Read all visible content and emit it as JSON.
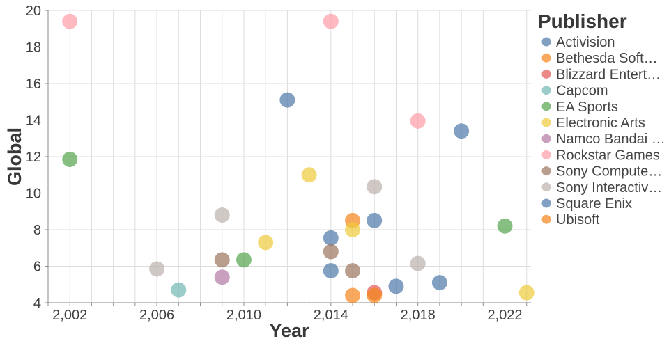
{
  "chart_data": {
    "type": "scatter",
    "title": "",
    "xlabel": "Year",
    "ylabel": "Global",
    "x_domain": [
      2001,
      2023.2
    ],
    "y_domain": [
      4,
      20
    ],
    "grid": true,
    "point_radius": 11,
    "point_opacity": 0.7,
    "x_labeled_ticks": [
      {
        "value": 2002,
        "label": "2,002"
      },
      {
        "value": 2006,
        "label": "2,006"
      },
      {
        "value": 2010,
        "label": "2,010"
      },
      {
        "value": 2014,
        "label": "2,014"
      },
      {
        "value": 2018,
        "label": "2,018"
      },
      {
        "value": 2022,
        "label": "2,022"
      }
    ],
    "y_ticks": [
      4,
      6,
      8,
      10,
      12,
      14,
      16,
      18,
      20
    ],
    "legend": {
      "title": "Publisher",
      "position": "right",
      "entries": [
        {
          "label": "Activision",
          "color": "#4c78a8"
        },
        {
          "label": "Bethesda Soft…",
          "color": "#f58518"
        },
        {
          "label": "Blizzard Entert…",
          "color": "#e45756"
        },
        {
          "label": "Capcom",
          "color": "#72b7b2"
        },
        {
          "label": "EA Sports",
          "color": "#54a24b"
        },
        {
          "label": "Electronic Arts",
          "color": "#eeca3b"
        },
        {
          "label": "Namco Bandai …",
          "color": "#b279a2"
        },
        {
          "label": "Rockstar Games",
          "color": "#ff9da6"
        },
        {
          "label": "Sony Compute…",
          "color": "#9d755d"
        },
        {
          "label": "Sony Interactiv…",
          "color": "#bab0ac"
        },
        {
          "label": "Square Enix",
          "color": "#4c78a8"
        },
        {
          "label": "Ubisoft",
          "color": "#f58518"
        }
      ]
    },
    "points": [
      {
        "year": 2002,
        "global": 19.4,
        "publisher": "Rockstar Games"
      },
      {
        "year": 2002,
        "global": 11.85,
        "publisher": "EA Sports"
      },
      {
        "year": 2006,
        "global": 5.85,
        "publisher": "Sony Interactiv…"
      },
      {
        "year": 2007,
        "global": 4.7,
        "publisher": "Capcom"
      },
      {
        "year": 2009,
        "global": 8.8,
        "publisher": "Sony Interactiv…"
      },
      {
        "year": 2009,
        "global": 6.35,
        "publisher": "Sony Compute…"
      },
      {
        "year": 2009,
        "global": 5.4,
        "publisher": "Namco Bandai …"
      },
      {
        "year": 2010,
        "global": 6.35,
        "publisher": "EA Sports"
      },
      {
        "year": 2011,
        "global": 7.3,
        "publisher": "Electronic Arts"
      },
      {
        "year": 2012,
        "global": 15.1,
        "publisher": "Activision"
      },
      {
        "year": 2013,
        "global": 11.0,
        "publisher": "Electronic Arts"
      },
      {
        "year": 2014,
        "global": 19.4,
        "publisher": "Rockstar Games"
      },
      {
        "year": 2014,
        "global": 7.55,
        "publisher": "Activision"
      },
      {
        "year": 2014,
        "global": 6.8,
        "publisher": "Sony Compute…"
      },
      {
        "year": 2014,
        "global": 5.75,
        "publisher": "Activision"
      },
      {
        "year": 2015,
        "global": 8.5,
        "publisher": "Bethesda Soft…"
      },
      {
        "year": 2015,
        "global": 8.0,
        "publisher": "Electronic Arts"
      },
      {
        "year": 2015,
        "global": 5.75,
        "publisher": "Sony Compute…"
      },
      {
        "year": 2015,
        "global": 4.4,
        "publisher": "Ubisoft"
      },
      {
        "year": 2016,
        "global": 10.35,
        "publisher": "Sony Interactiv…"
      },
      {
        "year": 2016,
        "global": 8.5,
        "publisher": "Activision"
      },
      {
        "year": 2016,
        "global": 4.55,
        "publisher": "Blizzard Entert…"
      },
      {
        "year": 2016,
        "global": 4.4,
        "publisher": "Ubisoft"
      },
      {
        "year": 2017,
        "global": 4.9,
        "publisher": "Square Enix"
      },
      {
        "year": 2018,
        "global": 13.95,
        "publisher": "Rockstar Games"
      },
      {
        "year": 2018,
        "global": 6.15,
        "publisher": "Sony Interactiv…"
      },
      {
        "year": 2019,
        "global": 5.1,
        "publisher": "Square Enix"
      },
      {
        "year": 2020,
        "global": 13.4,
        "publisher": "Activision"
      },
      {
        "year": 2022,
        "global": 8.2,
        "publisher": "EA Sports"
      },
      {
        "year": 2023,
        "global": 4.55,
        "publisher": "Electronic Arts"
      }
    ]
  }
}
